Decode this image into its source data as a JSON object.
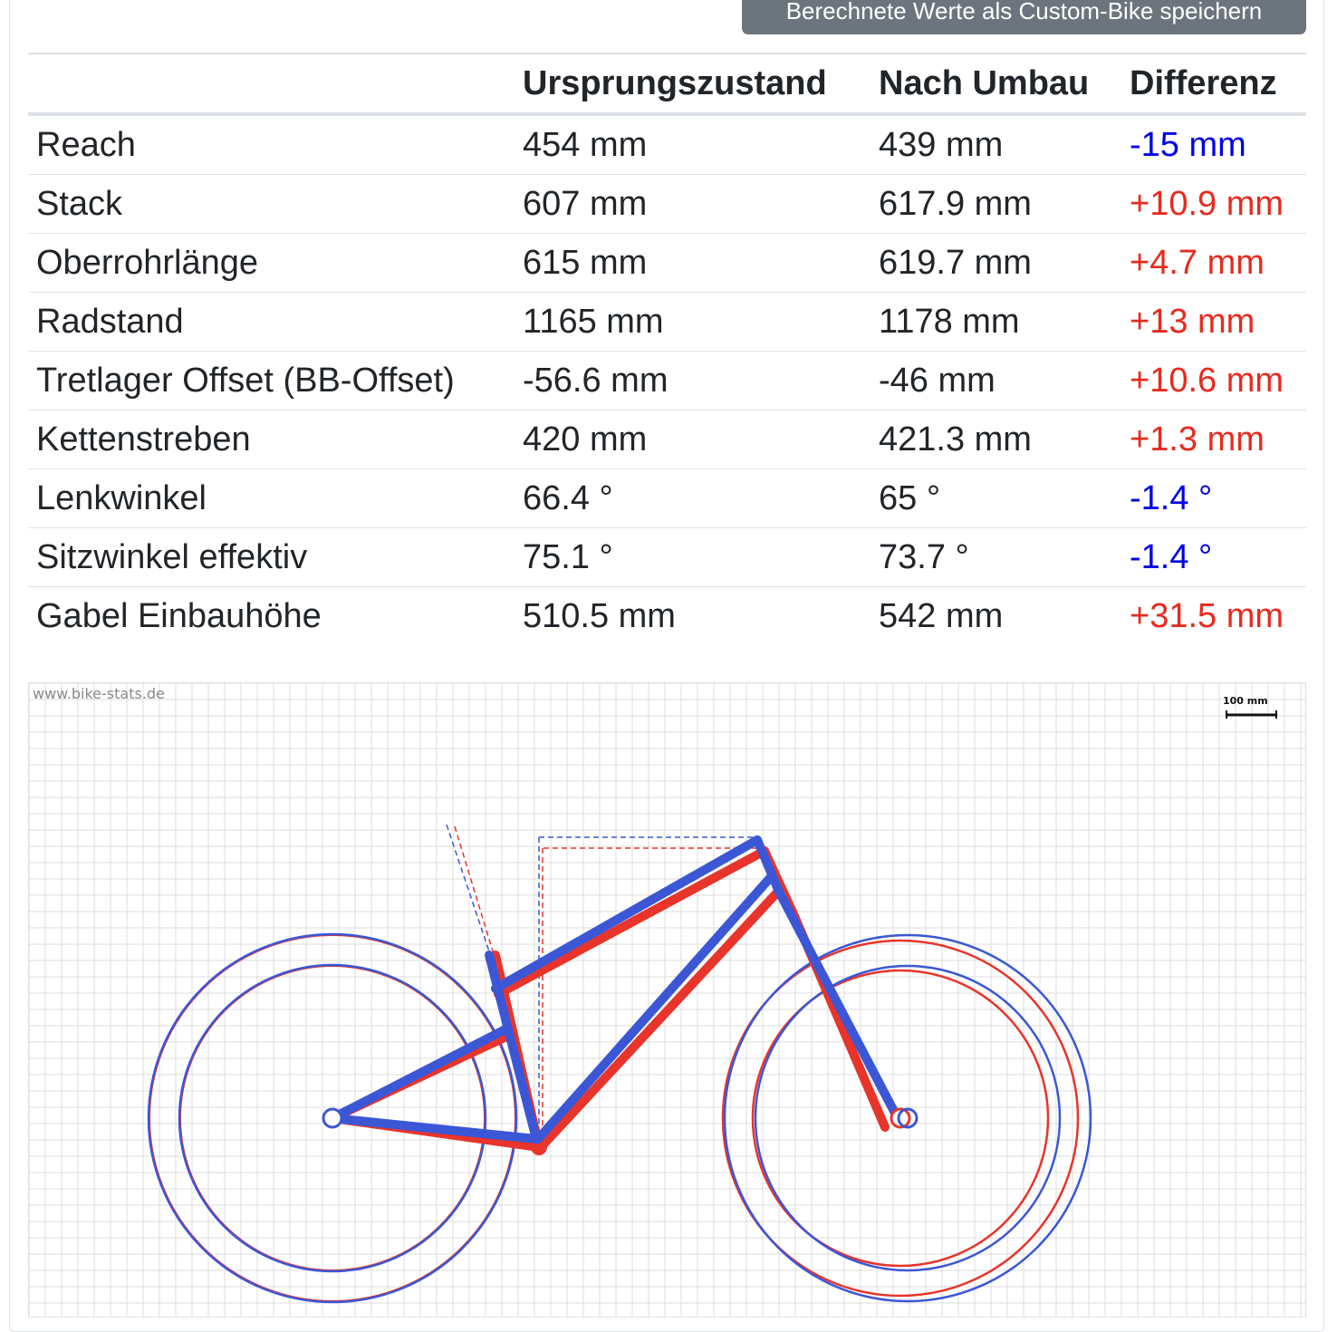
{
  "toolbar": {
    "save_label": "Berechnete Werte als Custom-Bike speichern"
  },
  "table": {
    "headers": [
      "",
      "Ursprungszustand",
      "Nach Umbau",
      "Differenz"
    ],
    "rows": [
      {
        "name": "Reach",
        "original": "454 mm",
        "modified": "439 mm",
        "diff": "-15 mm",
        "sign": "neg"
      },
      {
        "name": "Stack",
        "original": "607 mm",
        "modified": "617.9 mm",
        "diff": "+10.9 mm",
        "sign": "pos"
      },
      {
        "name": "Oberrohrlänge",
        "original": "615 mm",
        "modified": "619.7 mm",
        "diff": "+4.7 mm",
        "sign": "pos"
      },
      {
        "name": "Radstand",
        "original": "1165 mm",
        "modified": "1178 mm",
        "diff": "+13 mm",
        "sign": "pos"
      },
      {
        "name": "Tretlager Offset (BB-Offset)",
        "original": "-56.6 mm",
        "modified": "-46 mm",
        "diff": "+10.6 mm",
        "sign": "pos"
      },
      {
        "name": "Kettenstreben",
        "original": "420 mm",
        "modified": "421.3 mm",
        "diff": "+1.3 mm",
        "sign": "pos"
      },
      {
        "name": "Lenkwinkel",
        "original": "66.4 °",
        "modified": "65 °",
        "diff": "-1.4 °",
        "sign": "neg"
      },
      {
        "name": "Sitzwinkel effektiv",
        "original": "75.1 °",
        "modified": "73.7 °",
        "diff": "-1.4 °",
        "sign": "neg"
      },
      {
        "name": "Gabel Einbauhöhe",
        "original": "510.5 mm",
        "modified": "542 mm",
        "diff": "+31.5 mm",
        "sign": "pos"
      }
    ]
  },
  "drawing": {
    "watermark": "www.bike-stats.de",
    "scale_label": "100 mm",
    "colors": {
      "original": "#e8342a",
      "modified": "#3b57d6",
      "grid": "#dcdcdc",
      "grid_major": "#c6c6c6"
    }
  }
}
